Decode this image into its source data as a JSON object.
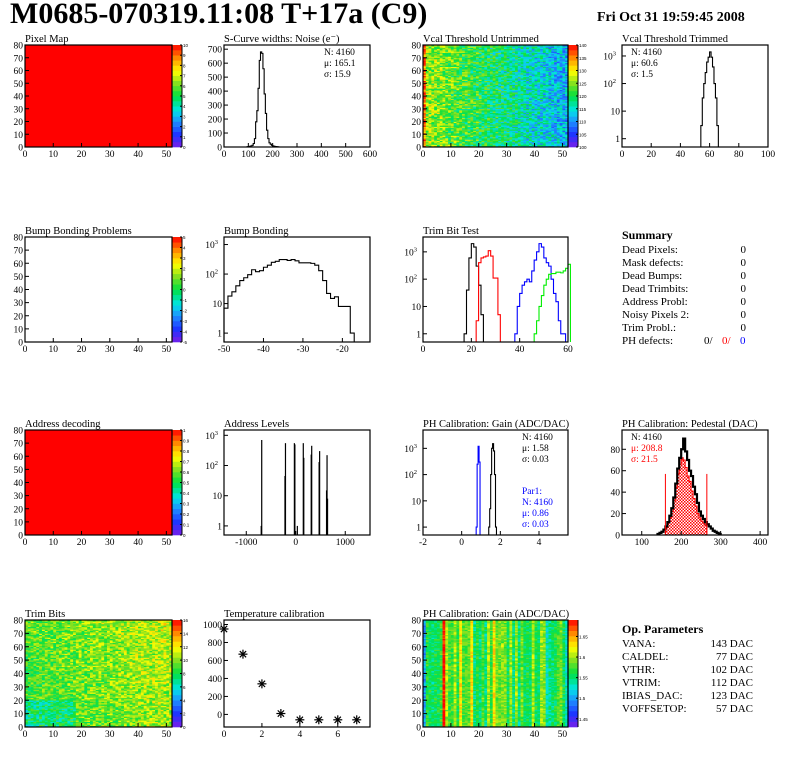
{
  "header": {
    "title": "M0685-070319.11:08 T+17a (C9)",
    "date": "Fri Oct 31 19:59:45 2008"
  },
  "summary": {
    "heading": "Summary",
    "rows": [
      {
        "label": "Dead Pixels:",
        "value": "0"
      },
      {
        "label": "Mask defects:",
        "value": "0"
      },
      {
        "label": "Dead Bumps:",
        "value": "0"
      },
      {
        "label": "Dead Trimbits:",
        "value": "0"
      },
      {
        "label": "Address Probl:",
        "value": "0"
      },
      {
        "label": "Noisy Pixels 2:",
        "value": "0"
      },
      {
        "label": "Trim Probl.:",
        "value": "0"
      }
    ],
    "ph_defects": {
      "label": "PH defects:",
      "values": [
        "0/",
        "0/",
        "0"
      ],
      "colors": [
        "#000000",
        "#ff0000",
        "#0000ff"
      ]
    }
  },
  "op_parameters": {
    "heading": "Op. Parameters",
    "rows": [
      {
        "label": "VANA:",
        "value": "143 DAC"
      },
      {
        "label": "CALDEL:",
        "value": "77 DAC"
      },
      {
        "label": "VTHR:",
        "value": "102 DAC"
      },
      {
        "label": "VTRIM:",
        "value": "112 DAC"
      },
      {
        "label": "IBIAS_DAC:",
        "value": "123 DAC"
      },
      {
        "label": "VOFFSETOP:",
        "value": "57 DAC"
      }
    ]
  },
  "chart_data": [
    {
      "id": "pixel-map",
      "type": "heatmap",
      "title": "Pixel Map",
      "xlim": [
        0,
        52
      ],
      "ylim": [
        0,
        80
      ],
      "zlim": [
        0,
        10
      ],
      "uniform_value": 10,
      "xticks": [
        0,
        10,
        20,
        30,
        40,
        50
      ],
      "yticks": [
        0,
        10,
        20,
        30,
        40,
        50,
        60,
        70,
        80
      ],
      "zticks": [
        "0",
        "1",
        "2",
        "3",
        "4",
        "5",
        "6",
        "7",
        "8",
        "9",
        "10"
      ]
    },
    {
      "id": "s-curve-noise",
      "type": "histogram",
      "title": "S-Curve widths: Noise (e⁻)",
      "xlim": [
        0,
        600
      ],
      "ylim": [
        0,
        730
      ],
      "log": false,
      "xticks": [
        0,
        100,
        200,
        300,
        400,
        500,
        600
      ],
      "yticks": [
        0,
        100,
        200,
        300,
        400,
        500,
        600,
        700
      ],
      "series": [
        {
          "color": "#000000",
          "start": 95,
          "width": 5,
          "values": [
            2,
            3,
            5,
            8,
            12,
            25,
            60,
            180,
            260,
            420,
            620,
            680,
            670,
            560,
            380,
            240,
            120,
            60,
            30,
            20,
            12,
            8,
            5,
            3,
            2,
            1
          ]
        }
      ],
      "stats": [
        {
          "text": "N: 4160",
          "color": "#000000"
        },
        {
          "text": "μ: 165.1",
          "color": "#000000"
        },
        {
          "text": "σ: 15.9",
          "color": "#000000"
        }
      ],
      "stats_pos": "top-right"
    },
    {
      "id": "vcal-threshold-untrimmed",
      "type": "heatmap",
      "title": "Vcal Threshold Untrimmed",
      "xlim": [
        0,
        52
      ],
      "ylim": [
        0,
        80
      ],
      "zlim": [
        100,
        140
      ],
      "xticks": [
        0,
        10,
        20,
        30,
        40,
        50
      ],
      "yticks": [
        0,
        10,
        20,
        30,
        40,
        50,
        60,
        70,
        80
      ],
      "zticks": [
        "100",
        "105",
        "110",
        "115",
        "120",
        "125",
        "130",
        "135",
        "140"
      ]
    },
    {
      "id": "vcal-threshold-trimmed",
      "type": "histogram",
      "title": "Vcal Threshold Trimmed",
      "xlim": [
        0,
        100
      ],
      "ylim": [
        0.5,
        2500
      ],
      "log": true,
      "xticks": [
        0,
        20,
        40,
        60,
        80,
        100
      ],
      "yticks": [
        {
          "v": 1,
          "label": "1"
        },
        {
          "v": 10,
          "label": "10"
        },
        {
          "v": 100,
          "label": "10",
          "sup": "2"
        },
        {
          "v": 1000,
          "label": "10",
          "sup": "3"
        }
      ],
      "series": [
        {
          "color": "#000000",
          "start": 54,
          "width": 1,
          "values": [
            3,
            30,
            100,
            250,
            600,
            900,
            1400,
            900,
            400,
            100,
            30,
            3
          ]
        }
      ],
      "stats": [
        {
          "text": "N: 4160",
          "color": "#000000"
        },
        {
          "text": "μ: 60.6",
          "color": "#000000"
        },
        {
          "text": "σ:  1.5",
          "color": "#000000"
        }
      ],
      "stats_pos": "top-left"
    },
    {
      "id": "bump-bonding-problems",
      "type": "heatmap",
      "title": "Bump Bonding Problems",
      "xlim": [
        0,
        52
      ],
      "ylim": [
        0,
        80
      ],
      "zlim": [
        -5,
        5
      ],
      "empty": true,
      "xticks": [
        0,
        10,
        20,
        30,
        40,
        50
      ],
      "yticks": [
        0,
        10,
        20,
        30,
        40,
        50,
        60,
        70,
        80
      ],
      "zticks": [
        "-5",
        "-4",
        "-3",
        "-2",
        "-1",
        "0",
        "1",
        "2",
        "3",
        "4",
        "5"
      ]
    },
    {
      "id": "bump-bonding",
      "type": "histogram",
      "title": "Bump Bonding",
      "xlim": [
        -50,
        -13
      ],
      "ylim": [
        0.5,
        1800
      ],
      "log": true,
      "xticks": [
        -50,
        -40,
        -30,
        -20
      ],
      "yticks": [
        {
          "v": 1,
          "label": "1"
        },
        {
          "v": 10,
          "label": "10"
        },
        {
          "v": 100,
          "label": "10",
          "sup": "2"
        },
        {
          "v": 1000,
          "label": "10",
          "sup": "3"
        }
      ],
      "series": [
        {
          "color": "#000000",
          "start": -50,
          "width": 1,
          "values": [
            7,
            18,
            25,
            40,
            60,
            75,
            95,
            140,
            120,
            130,
            170,
            200,
            250,
            270,
            310,
            310,
            290,
            310,
            280,
            240,
            240,
            240,
            230,
            200,
            130,
            60,
            22,
            15,
            17,
            8,
            8,
            8,
            1,
            0
          ]
        }
      ]
    },
    {
      "id": "trim-bit-test",
      "type": "histogram",
      "title": "Trim Bit Test",
      "xlim": [
        0,
        60
      ],
      "ylim": [
        0.5,
        3500
      ],
      "log": true,
      "xticks": [
        0,
        20,
        40,
        60
      ],
      "yticks": [
        {
          "v": 1,
          "label": "1"
        },
        {
          "v": 10,
          "label": "10"
        },
        {
          "v": 100,
          "label": "10",
          "sup": "2"
        },
        {
          "v": 1000,
          "label": "10",
          "sup": "3"
        }
      ],
      "series": [
        {
          "color": "#000000",
          "start": 17,
          "width": 1,
          "values": [
            1,
            40,
            600,
            2000,
            1500,
            300,
            60,
            5
          ]
        },
        {
          "color": "#ff0000",
          "start": 22,
          "width": 1,
          "values": [
            3,
            400,
            600,
            650,
            700,
            1100,
            700,
            110,
            110,
            5
          ]
        },
        {
          "color": "#0000ff",
          "start": 38,
          "width": 1,
          "values": [
            1,
            10,
            30,
            60,
            80,
            100,
            80,
            200,
            500,
            1000,
            2000,
            1500,
            600,
            400,
            300,
            100,
            30,
            15,
            3,
            1,
            1,
            0.5
          ]
        },
        {
          "color": "#00ee00",
          "start": 46,
          "width": 1,
          "values": [
            1,
            3,
            10,
            25,
            60,
            100,
            150,
            160,
            160,
            180,
            180,
            170,
            200,
            250,
            350
          ]
        }
      ]
    },
    {
      "id": "address-decoding",
      "type": "heatmap",
      "title": "Address decoding",
      "xlim": [
        0,
        52
      ],
      "ylim": [
        0,
        80
      ],
      "zlim": [
        0,
        1
      ],
      "uniform_value": 1,
      "xticks": [
        0,
        10,
        20,
        30,
        40,
        50
      ],
      "yticks": [
        0,
        10,
        20,
        30,
        40,
        50,
        60,
        70,
        80
      ],
      "zticks": [
        "0",
        "0.1",
        "0.2",
        "0.3",
        "0.4",
        "0.5",
        "0.6",
        "0.7",
        "0.8",
        "0.9",
        "1"
      ]
    },
    {
      "id": "address-levels",
      "type": "histogram",
      "title": "Address Levels",
      "xlim": [
        -1450,
        1500
      ],
      "ylim": [
        0.5,
        1500
      ],
      "log": true,
      "xticks": [
        -1000,
        0,
        1000
      ],
      "yticks": [
        {
          "v": 1,
          "label": "1"
        },
        {
          "v": 10,
          "label": "10"
        },
        {
          "v": 100,
          "label": "10",
          "sup": "2"
        },
        {
          "v": 1000,
          "label": "10",
          "sup": "3"
        }
      ],
      "series": [
        {
          "color": "#000000",
          "width": 10,
          "bins": [
            [
              -710,
              1
            ],
            [
              -700,
              700
            ],
            [
              -230,
              45
            ],
            [
              -220,
              550
            ],
            [
              -40,
              550
            ],
            [
              -30,
              500
            ],
            [
              20,
              1
            ],
            [
              140,
              550
            ],
            [
              150,
              180
            ],
            [
              300,
              230
            ],
            [
              310,
              450
            ],
            [
              460,
              130
            ],
            [
              470,
              300
            ],
            [
              610,
              15
            ],
            [
              620,
              220
            ],
            [
              630,
              8
            ]
          ]
        }
      ]
    },
    {
      "id": "ph-calibration-gain",
      "type": "histogram",
      "title": "PH Calibration: Gain (ADC/DAC)",
      "xlim": [
        -2,
        5.5
      ],
      "ylim": [
        0.5,
        5000
      ],
      "log": true,
      "xticks": [
        -2,
        0,
        2,
        4
      ],
      "yticks": [
        {
          "v": 1,
          "label": "1"
        },
        {
          "v": 10,
          "label": "10"
        },
        {
          "v": 100,
          "label": "10",
          "sup": "2"
        },
        {
          "v": 1000,
          "label": "10",
          "sup": "3"
        }
      ],
      "series": [
        {
          "color": "#000000",
          "start": 1.4,
          "width": 0.05,
          "values": [
            1,
            5,
            100,
            1000,
            1500,
            800,
            100,
            1
          ]
        },
        {
          "color": "#0000ff",
          "start": -1,
          "width": 0.05,
          "zero_line_to": 5.5,
          "values_start": 0.75,
          "values": [
            1,
            250,
            1200,
            300
          ]
        }
      ],
      "stats": [
        {
          "text": "N: 4160",
          "color": "#000000"
        },
        {
          "text": "μ: 1.58",
          "color": "#000000"
        },
        {
          "text": "σ: 0.03",
          "color": "#000000"
        }
      ],
      "stats_pos": "top-right",
      "stats2": [
        {
          "text": "Par1:",
          "color": "#0000ff"
        },
        {
          "text": "N: 4160",
          "color": "#0000ff"
        },
        {
          "text": "μ: 0.86",
          "color": "#0000ff"
        },
        {
          "text": "σ: 0.03",
          "color": "#0000ff"
        }
      ]
    },
    {
      "id": "ph-calibration-pedestal",
      "type": "histogram",
      "title": "PH Calibration: Pedestal (DAC)",
      "xlim": [
        50,
        420
      ],
      "ylim": [
        0,
        98
      ],
      "log": false,
      "xticks": [
        100,
        200,
        300,
        400
      ],
      "yticks": [
        0,
        20,
        40,
        60,
        80
      ],
      "series": [
        {
          "color": "#ff0000",
          "fill": "hatch",
          "start": 160,
          "width": 5,
          "values": [
            7,
            11,
            16,
            22,
            32,
            44,
            57,
            66,
            72,
            70,
            63,
            55,
            50,
            41,
            34,
            27,
            20,
            16,
            13,
            11,
            9
          ]
        },
        {
          "color": "#000000",
          "thick": true,
          "start": 140,
          "width": 5,
          "values": [
            1,
            2,
            3,
            5,
            8,
            12,
            18,
            25,
            35,
            48,
            62,
            72,
            80,
            90,
            78,
            70,
            60,
            55,
            45,
            38,
            30,
            22,
            18,
            15,
            12,
            10,
            8,
            6,
            4,
            3,
            2,
            1
          ]
        }
      ],
      "cut_lines": {
        "color": "#ff0000",
        "x": [
          160,
          265
        ],
        "height": 57
      },
      "stats": [
        {
          "text": "N: 4160",
          "color": "#000000"
        },
        {
          "text": "μ: 208.8",
          "color": "#ff0000"
        },
        {
          "text": "σ: 21.5",
          "color": "#ff0000"
        }
      ],
      "stats_pos": "top-left"
    },
    {
      "id": "trim-bits",
      "type": "heatmap",
      "title": "Trim Bits",
      "xlim": [
        0,
        52
      ],
      "ylim": [
        0,
        80
      ],
      "zlim": [
        0,
        16
      ],
      "xticks": [
        0,
        10,
        20,
        30,
        40,
        50
      ],
      "yticks": [
        0,
        10,
        20,
        30,
        40,
        50,
        60,
        70,
        80
      ],
      "zticks": [
        "0",
        "2",
        "4",
        "6",
        "8",
        "10",
        "12",
        "14",
        "16"
      ]
    },
    {
      "id": "temperature-calibration",
      "type": "scatter",
      "title": "Temperature calibration",
      "xlim": [
        0,
        7.7
      ],
      "ylim": [
        -140,
        1050
      ],
      "marker": "star",
      "xticks": [
        0,
        2,
        4,
        6
      ],
      "yticks": [
        0,
        200,
        400,
        600,
        800,
        1000
      ],
      "x": [
        0,
        1,
        2,
        3,
        4,
        5,
        6,
        7
      ],
      "y": [
        950,
        670,
        340,
        10,
        -60,
        -60,
        -60,
        -60
      ]
    },
    {
      "id": "ph-calibration-gain-map",
      "type": "heatmap",
      "title": "PH Calibration: Gain (ADC/DAC)",
      "xlim": [
        0,
        52
      ],
      "ylim": [
        0,
        80
      ],
      "zlim": [
        1.43,
        1.69
      ],
      "xticks": [
        0,
        10,
        20,
        30,
        40,
        50
      ],
      "yticks": [
        0,
        10,
        20,
        30,
        40,
        50,
        60,
        70,
        80
      ],
      "zticks": [
        "1.45",
        "1.5",
        "1.55",
        "1.6",
        "1.65"
      ],
      "zticks_values": [
        1.45,
        1.5,
        1.55,
        1.6,
        1.65
      ]
    }
  ]
}
